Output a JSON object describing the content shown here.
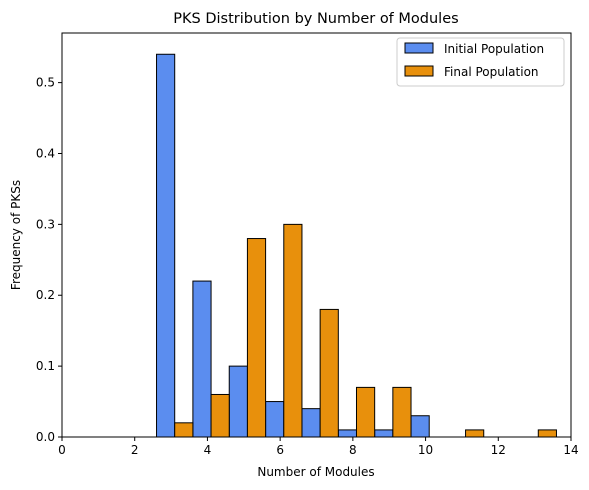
{
  "chart_data": {
    "type": "bar",
    "title": "PKS Distribution by Number of Modules",
    "xlabel": "Number of Modules",
    "ylabel": "Frequency of PKSs",
    "xlim": [
      0,
      14
    ],
    "ylim": [
      0,
      0.57
    ],
    "xticks": [
      0,
      2,
      4,
      6,
      8,
      10,
      12,
      14
    ],
    "yticks": [
      0.0,
      0.1,
      0.2,
      0.3,
      0.4,
      0.5
    ],
    "xtick_labels": [
      "0",
      "2",
      "4",
      "6",
      "8",
      "10",
      "12",
      "14"
    ],
    "ytick_labels": [
      "0.0",
      "0.1",
      "0.2",
      "0.3",
      "0.4",
      "0.5"
    ],
    "bin_edges": [
      0.6,
      1.6,
      2.6,
      3.6,
      4.6,
      5.6,
      6.6,
      7.6,
      8.6,
      9.6,
      10.6,
      11.6,
      12.6,
      13.6
    ],
    "grid": false,
    "legend_position": "top-right",
    "series": [
      {
        "name": "Initial Population",
        "color": "#5b8def",
        "values": [
          0,
          0,
          0.54,
          0.22,
          0.1,
          0.05,
          0.04,
          0.01,
          0.01,
          0.03,
          0,
          0,
          0
        ]
      },
      {
        "name": "Final Population",
        "color": "#e8900c",
        "values": [
          0,
          0,
          0.02,
          0.06,
          0.28,
          0.3,
          0.18,
          0.07,
          0.07,
          0,
          0.01,
          0,
          0.01
        ]
      }
    ]
  }
}
